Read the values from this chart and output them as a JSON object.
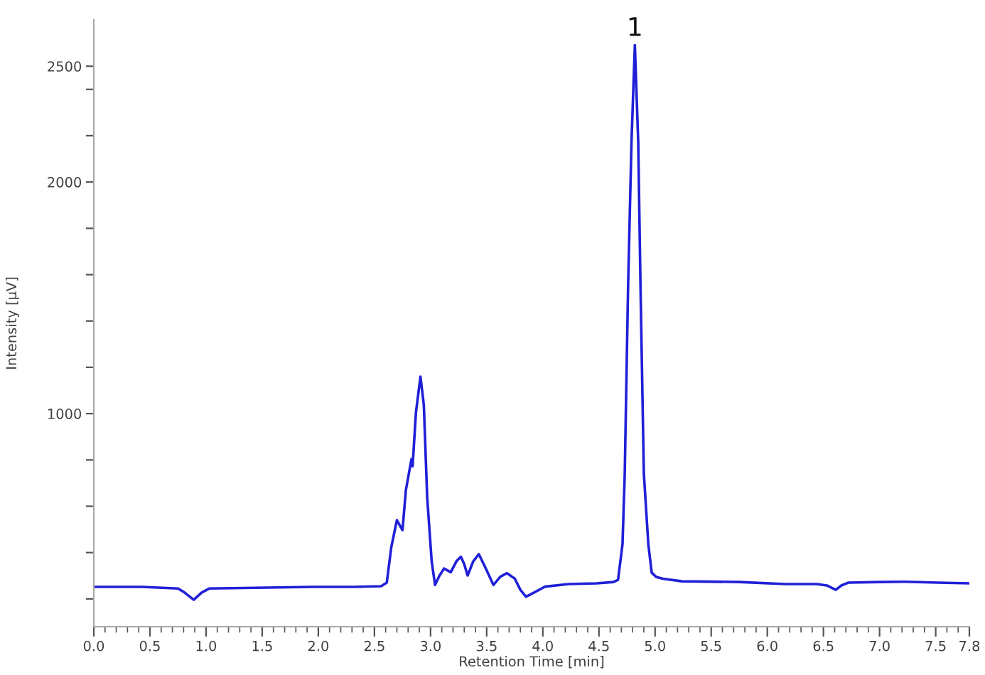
{
  "chart_data": {
    "type": "line",
    "xlabel": "Retention Time [min]",
    "ylabel": "Intensity [µV]",
    "x": [
      0.0,
      0.43,
      0.75,
      0.81,
      0.89,
      0.96,
      1.03,
      1.44,
      1.95,
      2.33,
      2.56,
      2.61,
      2.65,
      2.7,
      2.75,
      2.78,
      2.83,
      2.84,
      2.87,
      2.91,
      2.94,
      2.97,
      3.01,
      3.04,
      3.08,
      3.12,
      3.18,
      3.23,
      3.27,
      3.3,
      3.33,
      3.38,
      3.43,
      3.48,
      3.56,
      3.62,
      3.68,
      3.75,
      3.8,
      3.85,
      3.92,
      4.02,
      4.23,
      4.48,
      4.63,
      4.67,
      4.71,
      4.73,
      4.76,
      4.79,
      4.82,
      4.85,
      4.87,
      4.9,
      4.94,
      4.97,
      5.01,
      5.07,
      5.24,
      5.75,
      6.16,
      6.44,
      6.53,
      6.61,
      6.66,
      6.72,
      7.01,
      7.23,
      7.52,
      7.8
    ],
    "series": [
      {
        "color": "#2020d8",
        "values": [
          252,
          252,
          245,
          227,
          196,
          227,
          245,
          248,
          252,
          252,
          255,
          270,
          423,
          540,
          497,
          669,
          804,
          773,
          1006,
          1160,
          1037,
          638,
          362,
          260,
          301,
          331,
          315,
          362,
          382,
          350,
          301,
          362,
          393,
          344,
          260,
          295,
          311,
          288,
          239,
          209,
          227,
          253,
          264,
          267,
          273,
          282,
          436,
          742,
          1558,
          2172,
          2591,
          2172,
          1558,
          742,
          436,
          313,
          295,
          287,
          276,
          273,
          264,
          264,
          258,
          239,
          258,
          270,
          273,
          274,
          270,
          267
        ]
      }
    ],
    "xlim": [
      0,
      7.8
    ],
    "ylim": [
      80,
      2700
    ],
    "line_style": "solid",
    "xticks": [
      {
        "value": 0,
        "label": "0.0"
      },
      {
        "value": 0.1,
        "label": null
      },
      {
        "value": 0.2,
        "label": null
      },
      {
        "value": 0.3,
        "label": null
      },
      {
        "value": 0.4,
        "label": null
      },
      {
        "value": 0.5,
        "label": "0.5"
      },
      {
        "value": 0.6,
        "label": null
      },
      {
        "value": 0.7,
        "label": null
      },
      {
        "value": 0.8,
        "label": null
      },
      {
        "value": 0.9,
        "label": null
      },
      {
        "value": 1.0,
        "label": "1.0"
      },
      {
        "value": 1.1,
        "label": null
      },
      {
        "value": 1.2,
        "label": null
      },
      {
        "value": 1.3,
        "label": null
      },
      {
        "value": 1.4,
        "label": null
      },
      {
        "value": 1.5,
        "label": "1.5"
      },
      {
        "value": 1.6,
        "label": null
      },
      {
        "value": 1.7,
        "label": null
      },
      {
        "value": 1.8,
        "label": null
      },
      {
        "value": 1.9,
        "label": null
      },
      {
        "value": 2.0,
        "label": "2.0"
      },
      {
        "value": 2.1,
        "label": null
      },
      {
        "value": 2.2,
        "label": null
      },
      {
        "value": 2.3,
        "label": null
      },
      {
        "value": 2.4,
        "label": null
      },
      {
        "value": 2.5,
        "label": "2.5"
      },
      {
        "value": 2.6,
        "label": null
      },
      {
        "value": 2.7,
        "label": null
      },
      {
        "value": 2.8,
        "label": null
      },
      {
        "value": 2.9,
        "label": null
      },
      {
        "value": 3.0,
        "label": "3.0"
      },
      {
        "value": 3.1,
        "label": null
      },
      {
        "value": 3.2,
        "label": null
      },
      {
        "value": 3.3,
        "label": null
      },
      {
        "value": 3.4,
        "label": null
      },
      {
        "value": 3.5,
        "label": "3.5"
      },
      {
        "value": 3.6,
        "label": null
      },
      {
        "value": 3.7,
        "label": null
      },
      {
        "value": 3.8,
        "label": null
      },
      {
        "value": 3.9,
        "label": null
      },
      {
        "value": 4.0,
        "label": "4.0"
      },
      {
        "value": 4.1,
        "label": null
      },
      {
        "value": 4.2,
        "label": null
      },
      {
        "value": 4.3,
        "label": null
      },
      {
        "value": 4.4,
        "label": null
      },
      {
        "value": 4.5,
        "label": "4.5"
      },
      {
        "value": 4.6,
        "label": null
      },
      {
        "value": 4.7,
        "label": null
      },
      {
        "value": 4.8,
        "label": null
      },
      {
        "value": 4.9,
        "label": null
      },
      {
        "value": 5.0,
        "label": "5.0"
      },
      {
        "value": 5.1,
        "label": null
      },
      {
        "value": 5.2,
        "label": null
      },
      {
        "value": 5.3,
        "label": null
      },
      {
        "value": 5.4,
        "label": null
      },
      {
        "value": 5.5,
        "label": "5.5"
      },
      {
        "value": 5.6,
        "label": null
      },
      {
        "value": 5.7,
        "label": null
      },
      {
        "value": 5.8,
        "label": null
      },
      {
        "value": 5.9,
        "label": null
      },
      {
        "value": 6.0,
        "label": "6.0"
      },
      {
        "value": 6.1,
        "label": null
      },
      {
        "value": 6.2,
        "label": null
      },
      {
        "value": 6.3,
        "label": null
      },
      {
        "value": 6.4,
        "label": null
      },
      {
        "value": 6.5,
        "label": "6.5"
      },
      {
        "value": 6.6,
        "label": null
      },
      {
        "value": 6.7,
        "label": null
      },
      {
        "value": 6.8,
        "label": null
      },
      {
        "value": 6.9,
        "label": null
      },
      {
        "value": 7.0,
        "label": "7.0"
      },
      {
        "value": 7.1,
        "label": null
      },
      {
        "value": 7.2,
        "label": null
      },
      {
        "value": 7.3,
        "label": null
      },
      {
        "value": 7.4,
        "label": null
      },
      {
        "value": 7.5,
        "label": "7.5"
      },
      {
        "value": 7.6,
        "label": null
      },
      {
        "value": 7.7,
        "label": null
      },
      7.8
    ],
    "yticks": [
      {
        "value": 200,
        "label": null
      },
      {
        "value": 400,
        "label": null
      },
      {
        "value": 600,
        "label": null
      },
      {
        "value": 800,
        "label": null
      },
      1000,
      {
        "value": 1200,
        "label": null
      },
      {
        "value": 1400,
        "label": null
      },
      {
        "value": 1600,
        "label": null
      },
      {
        "value": 1800,
        "label": null
      },
      2000,
      {
        "value": 2200,
        "label": null
      },
      {
        "value": 2400,
        "label": null
      },
      2500
    ],
    "annotations": [
      {
        "text": "1",
        "x": 4.82,
        "y": 2591
      }
    ]
  }
}
